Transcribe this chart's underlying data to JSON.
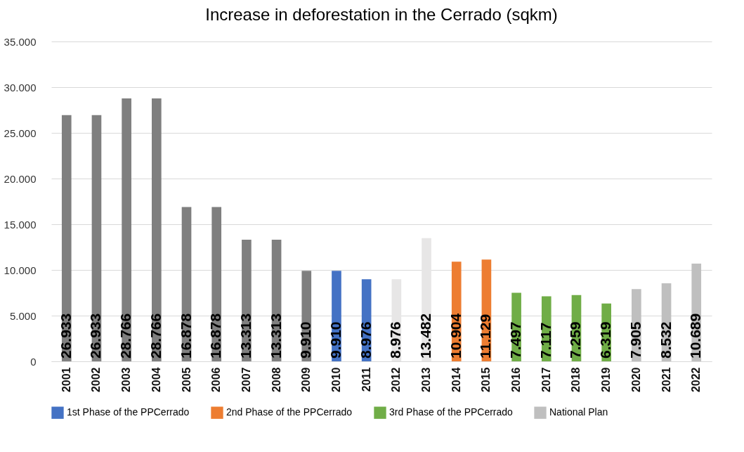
{
  "chart_data": {
    "type": "bar",
    "title": "Increase in deforestation in the Cerrado (sqkm)",
    "categories": [
      "2001",
      "2002",
      "2003",
      "2004",
      "2005",
      "2006",
      "2007",
      "2008",
      "2009",
      "2010",
      "2011",
      "2012",
      "2013",
      "2014",
      "2015",
      "2016",
      "2017",
      "2018",
      "2019",
      "2020",
      "2021",
      "2022"
    ],
    "series": [
      {
        "color": "#7f7f7f",
        "values": [
          26933,
          26933,
          28766,
          28766,
          16878,
          16878,
          13313,
          13313,
          9910,
          null,
          null,
          null,
          null,
          null,
          null,
          null,
          null,
          null,
          null,
          null,
          null,
          null
        ],
        "value_labels": [
          "26.933",
          "26.933",
          "28.766",
          "28.766",
          "16.878",
          "16.878",
          "13.313",
          "13.313",
          "9.910",
          null,
          null,
          null,
          null,
          null,
          null,
          null,
          null,
          null,
          null,
          null,
          null,
          null
        ]
      },
      {
        "name": "1st Phase of the PPCerrado",
        "color": "#4472c4",
        "values": [
          null,
          null,
          null,
          null,
          null,
          null,
          null,
          null,
          null,
          9910,
          8976,
          null,
          null,
          null,
          null,
          null,
          null,
          null,
          null,
          null,
          null,
          null
        ],
        "value_labels": [
          null,
          null,
          null,
          null,
          null,
          null,
          null,
          null,
          null,
          "9.910",
          "8.976",
          null,
          null,
          null,
          null,
          null,
          null,
          null,
          null,
          null,
          null,
          null
        ]
      },
      {
        "color": "#e7e6e6",
        "values": [
          null,
          null,
          null,
          null,
          null,
          null,
          null,
          null,
          null,
          null,
          null,
          8976,
          13482,
          null,
          null,
          null,
          null,
          null,
          null,
          null,
          null,
          null
        ],
        "value_labels": [
          null,
          null,
          null,
          null,
          null,
          null,
          null,
          null,
          null,
          null,
          null,
          "8.976",
          "13.482",
          null,
          null,
          null,
          null,
          null,
          null,
          null,
          null,
          null
        ]
      },
      {
        "name": "2nd Phase of the PPCerrado",
        "color": "#ed7d31",
        "values": [
          null,
          null,
          null,
          null,
          null,
          null,
          null,
          null,
          null,
          null,
          null,
          null,
          null,
          10904,
          11129,
          null,
          null,
          null,
          null,
          null,
          null,
          null
        ],
        "value_labels": [
          null,
          null,
          null,
          null,
          null,
          null,
          null,
          null,
          null,
          null,
          null,
          null,
          null,
          "10.904",
          "11.129",
          null,
          null,
          null,
          null,
          null,
          null,
          null
        ]
      },
      {
        "name": "3rd Phase of the PPCerrado",
        "color": "#70ad47",
        "values": [
          null,
          null,
          null,
          null,
          null,
          null,
          null,
          null,
          null,
          null,
          null,
          null,
          null,
          null,
          null,
          7497,
          7117,
          7259,
          6319,
          null,
          null,
          null
        ],
        "value_labels": [
          null,
          null,
          null,
          null,
          null,
          null,
          null,
          null,
          null,
          null,
          null,
          null,
          null,
          null,
          null,
          "7.497",
          "7.117",
          "7.259",
          "6.319",
          null,
          null,
          null
        ]
      },
      {
        "name": "National Plan",
        "color": "#bfbfbf",
        "values": [
          null,
          null,
          null,
          null,
          null,
          null,
          null,
          null,
          null,
          null,
          null,
          null,
          null,
          null,
          null,
          null,
          null,
          null,
          null,
          7905,
          8532,
          10689
        ],
        "value_labels": [
          null,
          null,
          null,
          null,
          null,
          null,
          null,
          null,
          null,
          null,
          null,
          null,
          null,
          null,
          null,
          null,
          null,
          null,
          null,
          "7.905",
          "8.532",
          "10.689"
        ]
      }
    ],
    "ylim": [
      0,
      35000
    ],
    "yticks": [
      0,
      {
        "value": 5000,
        "label": "5.000"
      },
      {
        "value": 10000,
        "label": "10.000"
      },
      {
        "value": 15000,
        "label": "15.000"
      },
      {
        "value": 20000,
        "label": "20.000"
      },
      {
        "value": 25000,
        "label": "25.000"
      },
      {
        "value": 30000,
        "label": "30.000"
      },
      {
        "value": 35000,
        "label": "35.000"
      }
    ],
    "grid": "y",
    "legend": "bottom"
  }
}
